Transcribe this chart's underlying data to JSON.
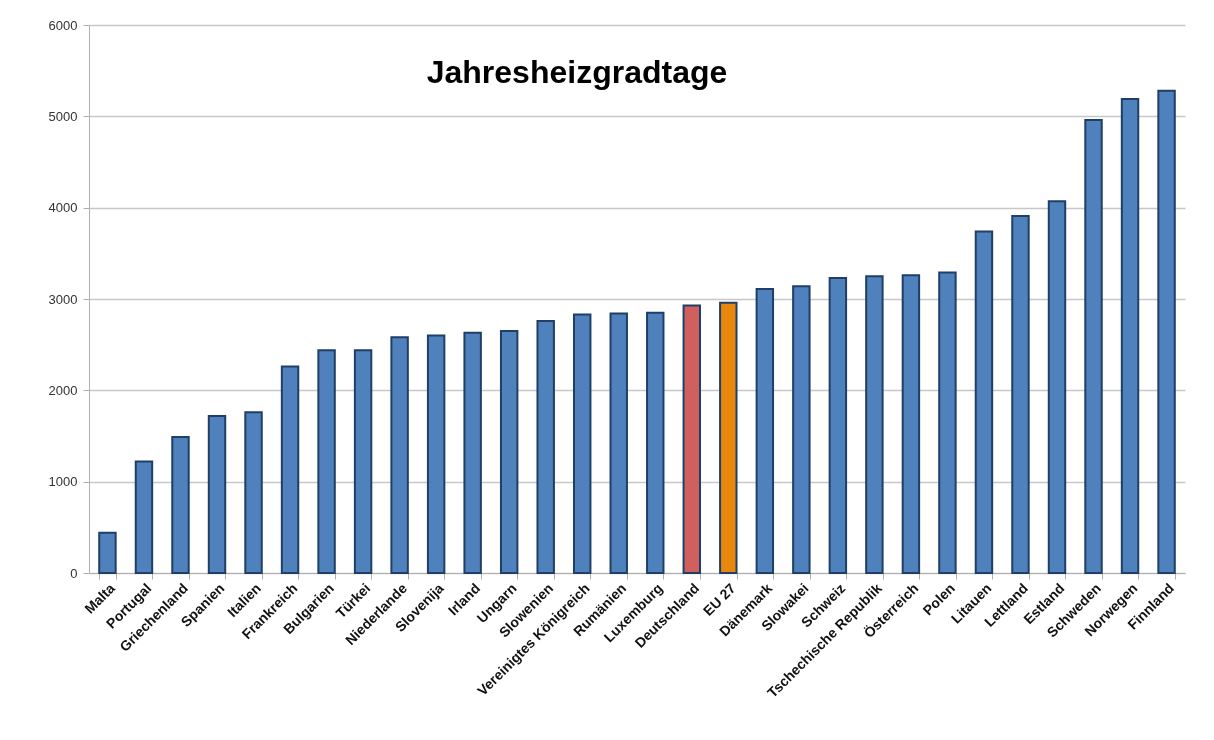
{
  "chart_data": {
    "type": "bar",
    "title": "Jahresheizgradtage",
    "categories": [
      "Malta",
      "Portugal",
      "Griechenland",
      "Spanien",
      "Italien",
      "Frankreich",
      "Bulgarien",
      "Türkei",
      "Niederlande",
      "Slovenija",
      "Irland",
      "Ungarn",
      "Slowenien",
      "Vereinigtes Königreich",
      "Rumänien",
      "Luxemburg",
      "Deutschland",
      "EU 27",
      "Dänemark",
      "Slowakei",
      "Schweiz",
      "Tschechische Republik",
      "Österreich",
      "Polen",
      "Litauen",
      "Lettland",
      "Estland",
      "Schweden",
      "Norwegen",
      "Finnland"
    ],
    "values": [
      440,
      1220,
      1490,
      1720,
      1760,
      2260,
      2440,
      2440,
      2580,
      2600,
      2630,
      2650,
      2760,
      2830,
      2840,
      2850,
      2930,
      2960,
      3110,
      3140,
      3230,
      3250,
      3260,
      3290,
      3740,
      3910,
      4070,
      4960,
      5190,
      5280
    ],
    "colors": [
      "#4f81bd",
      "#4f81bd",
      "#4f81bd",
      "#4f81bd",
      "#4f81bd",
      "#4f81bd",
      "#4f81bd",
      "#4f81bd",
      "#4f81bd",
      "#4f81bd",
      "#4f81bd",
      "#4f81bd",
      "#4f81bd",
      "#4f81bd",
      "#4f81bd",
      "#4f81bd",
      "#d0605e",
      "#e8870e",
      "#4f81bd",
      "#4f81bd",
      "#4f81bd",
      "#4f81bd",
      "#4f81bd",
      "#4f81bd",
      "#4f81bd",
      "#4f81bd",
      "#4f81bd",
      "#4f81bd",
      "#4f81bd",
      "#4f81bd"
    ],
    "ylim": [
      0,
      6000
    ],
    "yticks": [
      0,
      1000,
      2000,
      3000,
      4000,
      5000,
      6000
    ],
    "grid": "y"
  }
}
